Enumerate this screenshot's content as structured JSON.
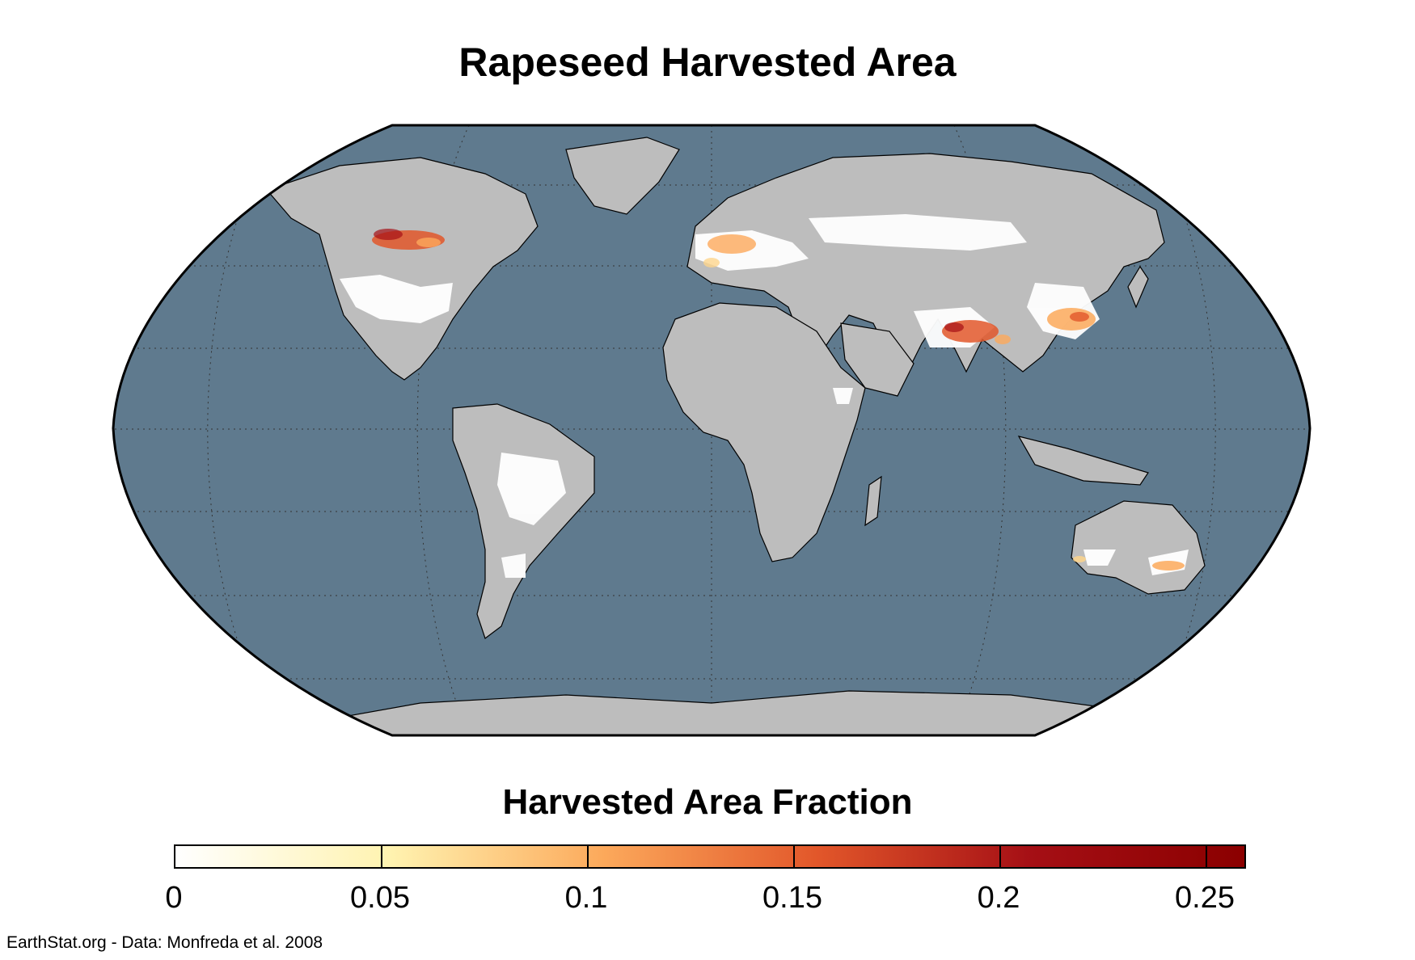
{
  "title": "Rapeseed Harvested Area",
  "legend": {
    "title": "Harvested Area Fraction",
    "ticks": [
      "0",
      "0.05",
      "0.1",
      "0.15",
      "0.2",
      "0.25"
    ],
    "tick_values": [
      0,
      0.05,
      0.1,
      0.15,
      0.2,
      0.25
    ],
    "range": [
      0,
      0.26
    ],
    "colors": [
      "#ffffff",
      "#fff3b0",
      "#fca95b",
      "#e2572a",
      "#a50f15",
      "#8b0000"
    ]
  },
  "credit": "EarthStat.org - Data: Monfreda et al. 2008",
  "colors": {
    "ocean": "#5f7a8e",
    "land_no_data": "#bdbdbd",
    "land_cultivated": "#ffffff",
    "border": "#000000",
    "graticule": "#333333"
  },
  "map": {
    "projection": "Robinson",
    "hotspots": [
      "Canadian Prairies",
      "Northern India",
      "Eastern China",
      "Western Europe",
      "Southern Australia"
    ]
  }
}
